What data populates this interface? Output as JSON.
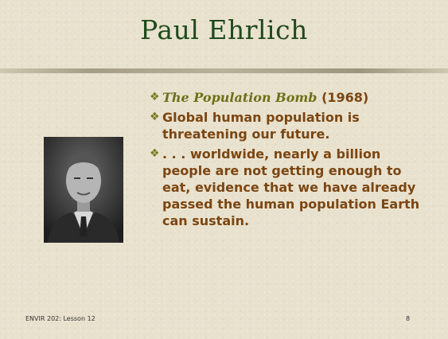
{
  "header": {
    "title": "Paul Ehrlich"
  },
  "bullets": [
    {
      "italic": "The Population Bomb",
      "text": "(1968)"
    },
    {
      "text": "Global human population is threatening our future."
    },
    {
      "text": ". . . worldwide, nearly a billion people are not getting enough to eat, evidence that we have already passed the human population Earth can sustain."
    }
  ],
  "footer": {
    "left": "ENVIR 202: Lesson 12",
    "right": "8"
  }
}
